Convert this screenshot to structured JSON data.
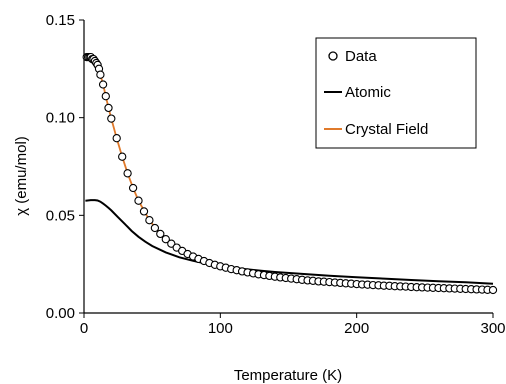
{
  "chart_data": {
    "type": "line",
    "xlabel": "Temperature (K)",
    "ylabel": "χ (emu/mol)",
    "xlim": [
      0,
      300
    ],
    "ylim": [
      0,
      0.15
    ],
    "x_ticks": [
      "0",
      "100",
      "200",
      "300"
    ],
    "y_ticks": [
      "0.00",
      "0.05",
      "0.10",
      "0.15"
    ],
    "grid": false,
    "legend_position": "top-right",
    "legend_entries": [
      "Data",
      "Atomic",
      "Crystal Field"
    ],
    "colors": {
      "data": "#000000",
      "atomic": "#000000",
      "crystal_field": "#e07a2b"
    },
    "series": [
      {
        "name": "Data",
        "style": "scatter",
        "x": [
          2,
          3,
          4,
          5,
          6,
          7,
          8,
          9,
          10,
          11,
          12,
          14,
          16,
          18,
          20,
          24,
          28,
          32,
          36,
          40,
          44,
          48,
          52,
          56,
          60,
          64,
          68,
          72,
          76,
          80,
          84,
          88,
          92,
          96,
          100,
          104,
          108,
          112,
          116,
          120,
          124,
          128,
          132,
          136,
          140,
          144,
          148,
          152,
          156,
          160,
          164,
          168,
          172,
          176,
          180,
          184,
          188,
          192,
          196,
          200,
          204,
          208,
          212,
          216,
          220,
          224,
          228,
          232,
          236,
          240,
          244,
          248,
          252,
          256,
          260,
          264,
          268,
          272,
          276,
          280,
          284,
          288,
          292,
          296,
          300
        ],
        "y": [
          0.131,
          0.131,
          0.131,
          0.131,
          0.13,
          0.13,
          0.129,
          0.128,
          0.127,
          0.125,
          0.122,
          0.117,
          0.111,
          0.105,
          0.0995,
          0.0895,
          0.08,
          0.0715,
          0.064,
          0.0575,
          0.052,
          0.0475,
          0.0435,
          0.0405,
          0.0378,
          0.0355,
          0.0335,
          0.0318,
          0.0302,
          0.0289,
          0.0277,
          0.0266,
          0.0256,
          0.0247,
          0.0239,
          0.0232,
          0.0225,
          0.0219,
          0.0213,
          0.0208,
          0.0203,
          0.0198,
          0.0194,
          0.019,
          0.0186,
          0.0182,
          0.0179,
          0.0176,
          0.0173,
          0.017,
          0.0167,
          0.0165,
          0.0162,
          0.016,
          0.0158,
          0.0156,
          0.0154,
          0.0152,
          0.015,
          0.0148,
          0.0146,
          0.0145,
          0.0143,
          0.0142,
          0.014,
          0.0139,
          0.0137,
          0.0136,
          0.0135,
          0.0133,
          0.0132,
          0.0131,
          0.013,
          0.0129,
          0.0128,
          0.0127,
          0.0126,
          0.0125,
          0.0124,
          0.0123,
          0.0122,
          0.0121,
          0.012,
          0.0119,
          0.0118
        ]
      },
      {
        "name": "Atomic",
        "style": "line",
        "x": [
          1,
          5,
          8,
          10,
          12,
          14,
          16,
          18,
          20,
          25,
          30,
          35,
          40,
          45,
          50,
          60,
          70,
          80,
          90,
          100,
          110,
          120,
          130,
          140,
          160,
          180,
          200,
          220,
          240,
          260,
          280,
          300
        ],
        "y": [
          0.0575,
          0.0578,
          0.0578,
          0.0576,
          0.057,
          0.056,
          0.055,
          0.0538,
          0.0525,
          0.049,
          0.0455,
          0.042,
          0.039,
          0.0365,
          0.0343,
          0.031,
          0.0285,
          0.0267,
          0.0252,
          0.024,
          0.0231,
          0.0223,
          0.0216,
          0.021,
          0.02,
          0.0191,
          0.0183,
          0.0176,
          0.0169,
          0.0163,
          0.0157,
          0.015
        ]
      },
      {
        "name": "Crystal Field",
        "style": "line",
        "x": [
          2,
          4,
          6,
          8,
          10,
          12,
          14,
          16,
          18,
          20,
          24,
          28,
          32,
          36,
          40,
          48,
          56,
          64,
          72,
          80,
          90,
          100,
          120,
          140,
          160,
          180,
          200,
          220,
          240,
          260,
          280,
          300
        ],
        "y": [
          0.131,
          0.131,
          0.13,
          0.129,
          0.127,
          0.122,
          0.117,
          0.111,
          0.105,
          0.0995,
          0.0895,
          0.08,
          0.0715,
          0.064,
          0.0575,
          0.0475,
          0.0405,
          0.0355,
          0.0318,
          0.0289,
          0.0261,
          0.0239,
          0.0208,
          0.0186,
          0.017,
          0.0158,
          0.0148,
          0.014,
          0.0133,
          0.0128,
          0.0123,
          0.0118
        ]
      }
    ]
  }
}
